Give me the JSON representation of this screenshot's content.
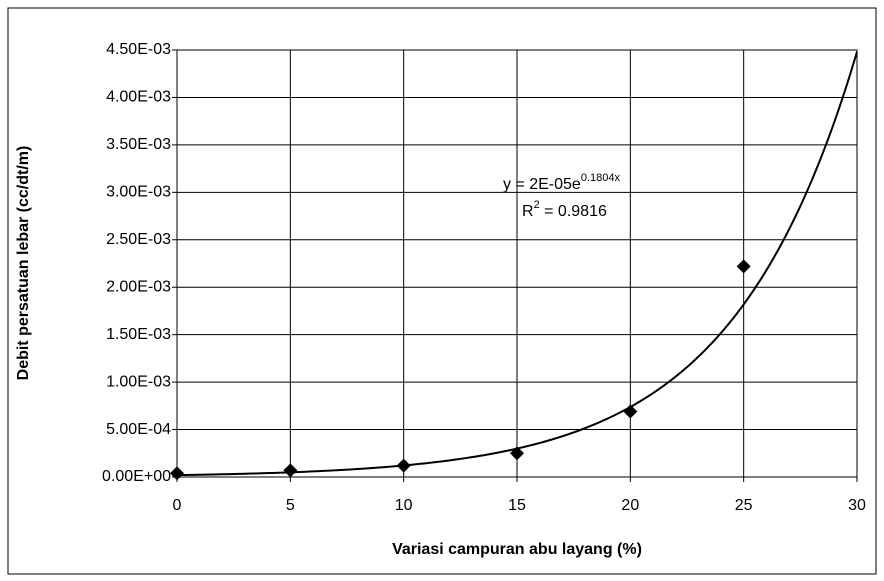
{
  "chart_data": {
    "type": "scatter",
    "x_label": "Variasi campuran abu layang (%)",
    "y_label": "Debit persatuan lebar (cc/dt/m)",
    "x": [
      0,
      5,
      10,
      15,
      20,
      25
    ],
    "series": [
      {
        "color": "#000000",
        "values": [
          4e-05,
          7e-05,
          0.00012,
          0.00025,
          0.00069,
          0.00222
        ]
      }
    ],
    "xlim": [
      0,
      30
    ],
    "xticks": [
      0,
      5,
      10,
      15,
      20,
      25,
      30
    ],
    "ylim": [
      0,
      0.0045
    ],
    "yticks": [
      {
        "value": 0,
        "label": "0.00E+00"
      },
      {
        "value": 0.0005,
        "label": "5.00E-04"
      },
      {
        "value": 0.001,
        "label": "1.00E-03"
      },
      {
        "value": 0.0015,
        "label": "1.50E-03"
      },
      {
        "value": 0.002,
        "label": "2.00E-03"
      },
      {
        "value": 0.0025,
        "label": "2.50E-03"
      },
      {
        "value": 0.003,
        "label": "3.00E-03"
      },
      {
        "value": 0.0035,
        "label": "3.50E-03"
      },
      {
        "value": 0.004,
        "label": "4.00E-03"
      },
      {
        "value": 0.0045,
        "label": "4.50E-03"
      }
    ],
    "grid": true,
    "trendline": {
      "type": "exponential",
      "a": 2e-05,
      "b": 0.1804,
      "equation": [
        "y = 2E-05e",
        "0.1804x"
      ],
      "r_squared": [
        "R",
        "2",
        " = 0.9816"
      ]
    }
  }
}
